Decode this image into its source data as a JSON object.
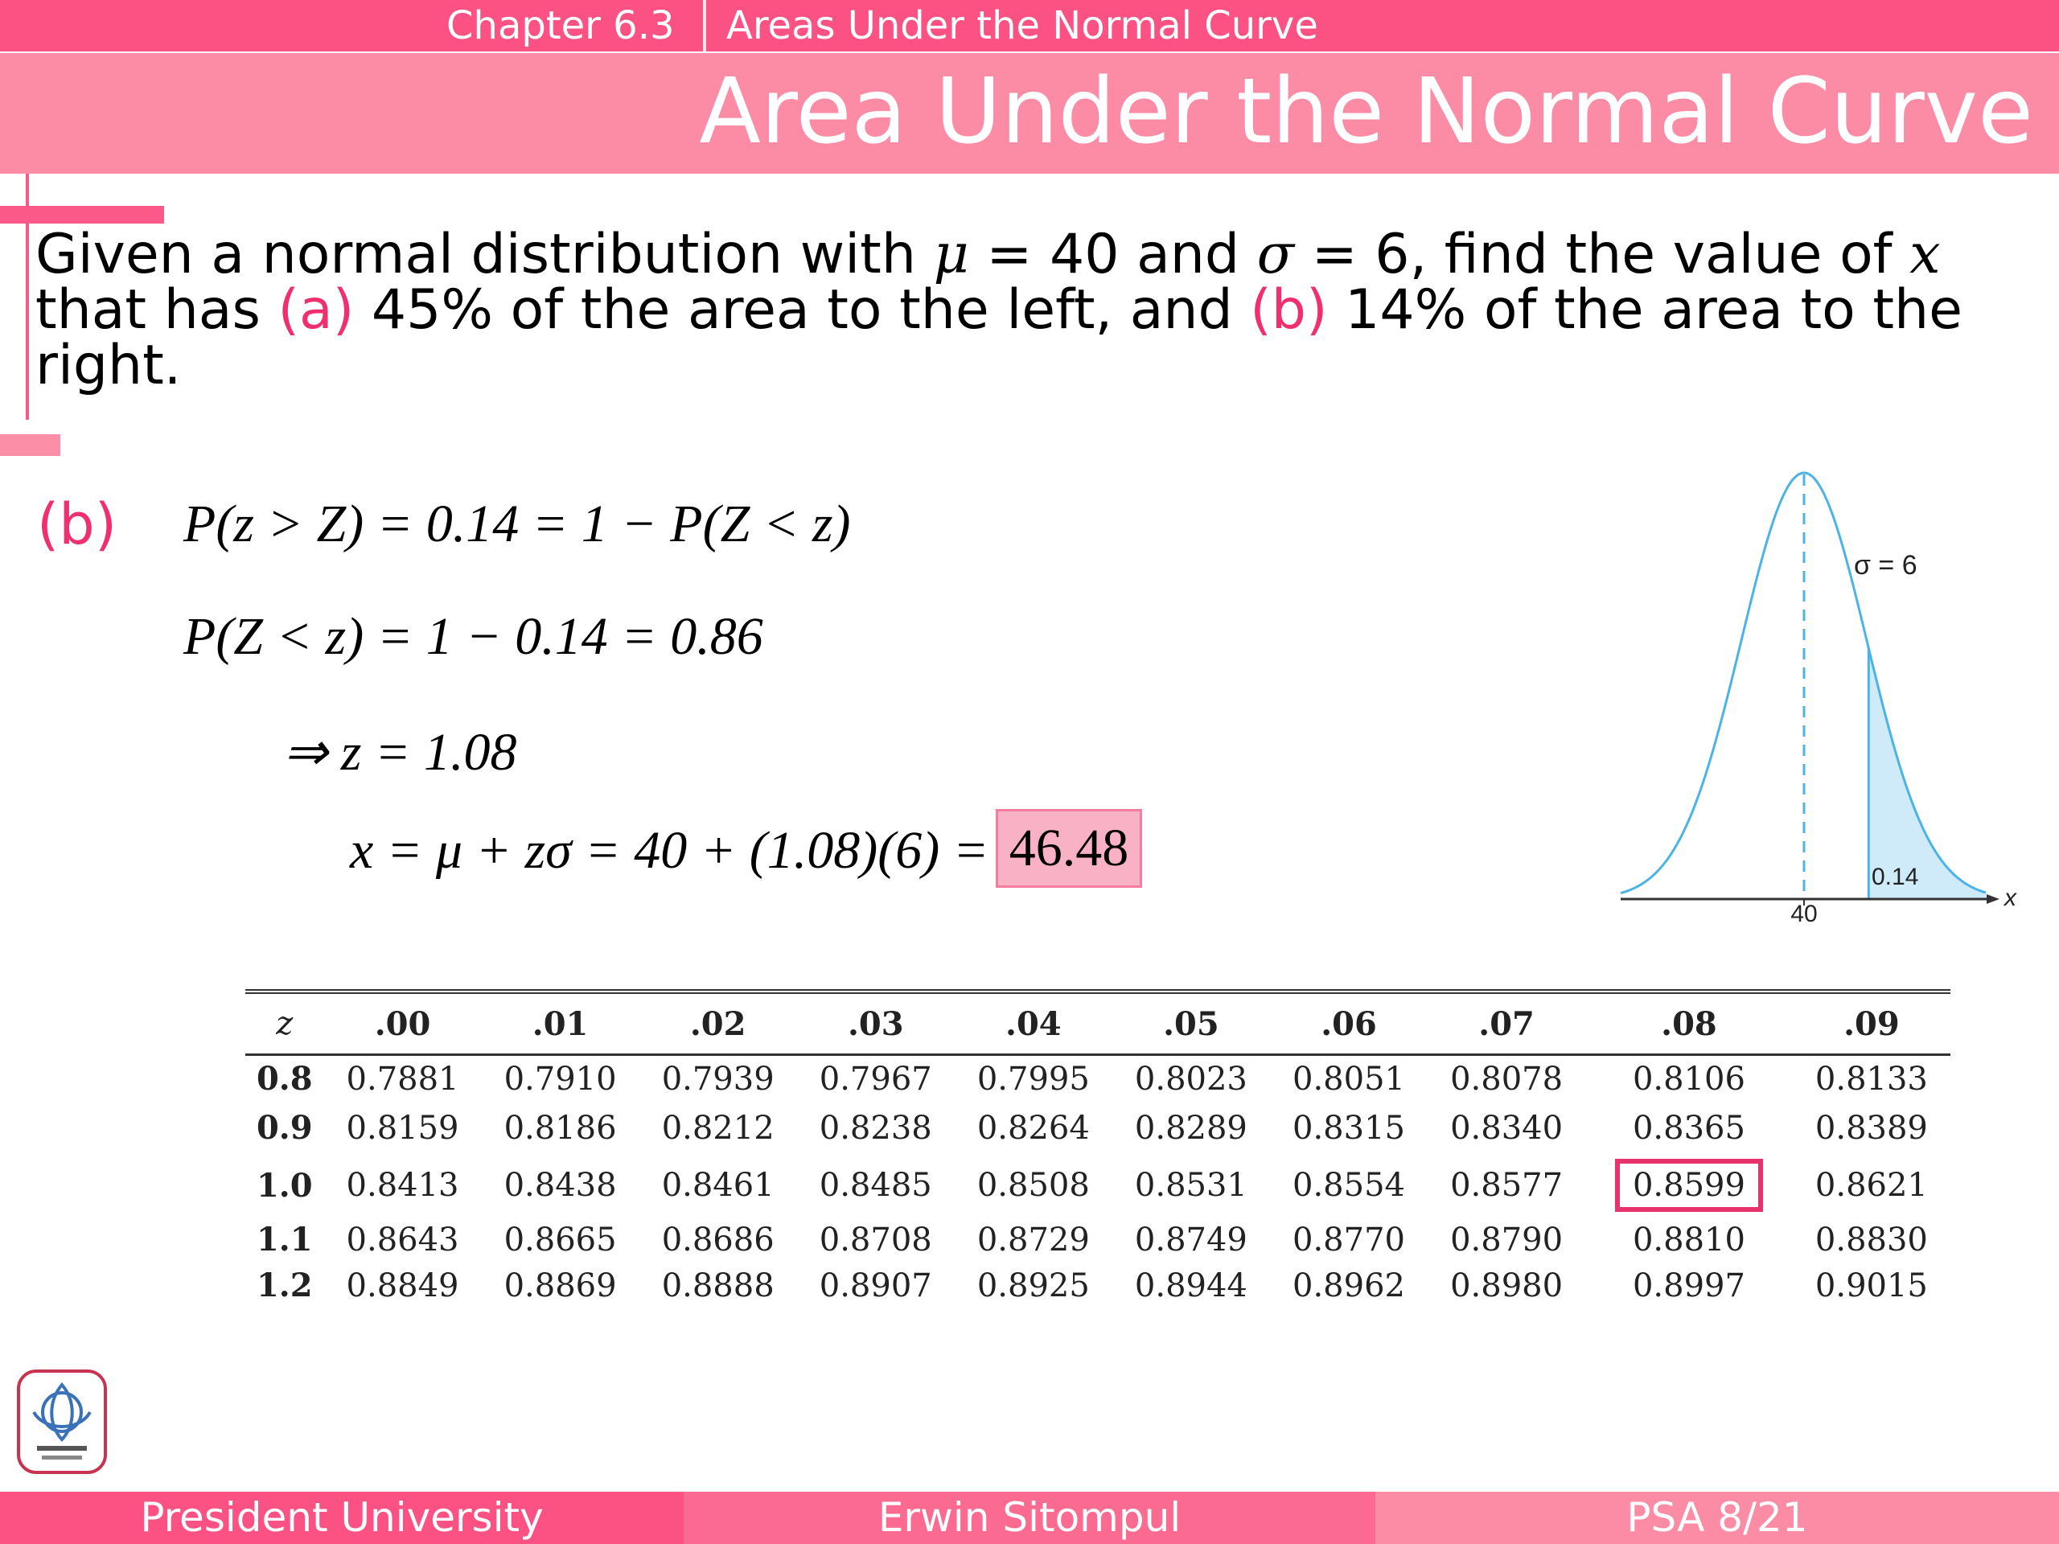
{
  "header": {
    "chapter": "Chapter 6.3",
    "section": "Areas Under the Normal Curve",
    "title": "Area Under the Normal Curve"
  },
  "problem": {
    "line1": "Given a normal distribution with ",
    "mu": "μ",
    "mu_val": " = 40 and ",
    "sigma": "σ",
    "sigma_val": " = 6, find the value of ",
    "x": "x",
    "line2_start": "that has ",
    "part_a": "(a)",
    "mid": " 45% of the area to the left, and ",
    "part_b": "(b)",
    "end": " 14% of the area to the right."
  },
  "solution": {
    "label": "(b)",
    "eq1": "P(z > Z) = 0.14 = 1 − P(Z < z)",
    "eq2": "P(Z < z) = 1 − 0.14 = 0.86",
    "eq3": "⇒ z = 1.08",
    "eq4": "x = μ + zσ  = 40 + (1.08)(6) =",
    "answer": "46.48"
  },
  "curve": {
    "sigma_label": "σ = 6",
    "mean_label": "40",
    "area_label": "0.14",
    "axis_label": "x",
    "line_color": "#4bb3e6",
    "fill_color": "#cfeaf8"
  },
  "ztable": {
    "headers": [
      "z",
      ".00",
      ".01",
      ".02",
      ".03",
      ".04",
      ".05",
      ".06",
      ".07",
      ".08",
      ".09"
    ],
    "rows": [
      [
        "0.8",
        "0.7881",
        "0.7910",
        "0.7939",
        "0.7967",
        "0.7995",
        "0.8023",
        "0.8051",
        "0.8078",
        "0.8106",
        "0.8133"
      ],
      [
        "0.9",
        "0.8159",
        "0.8186",
        "0.8212",
        "0.8238",
        "0.8264",
        "0.8289",
        "0.8315",
        "0.8340",
        "0.8365",
        "0.8389"
      ],
      [
        "1.0",
        "0.8413",
        "0.8438",
        "0.8461",
        "0.8485",
        "0.8508",
        "0.8531",
        "0.8554",
        "0.8577",
        "0.8599",
        "0.8621"
      ],
      [
        "1.1",
        "0.8643",
        "0.8665",
        "0.8686",
        "0.8708",
        "0.8729",
        "0.8749",
        "0.8770",
        "0.8790",
        "0.8810",
        "0.8830"
      ],
      [
        "1.2",
        "0.8849",
        "0.8869",
        "0.8888",
        "0.8907",
        "0.8925",
        "0.8944",
        "0.8962",
        "0.8980",
        "0.8997",
        "0.9015"
      ]
    ],
    "highlight": {
      "row": 2,
      "col": 9
    }
  },
  "footer": {
    "left": "President University",
    "center": "Erwin Sitompul",
    "right": "PSA 8/21"
  },
  "colors": {
    "accent": "#fb5283",
    "accent_light": "#fc8ba5",
    "highlight_text": "#f0306e",
    "answer_bg": "#f9b1c5"
  }
}
